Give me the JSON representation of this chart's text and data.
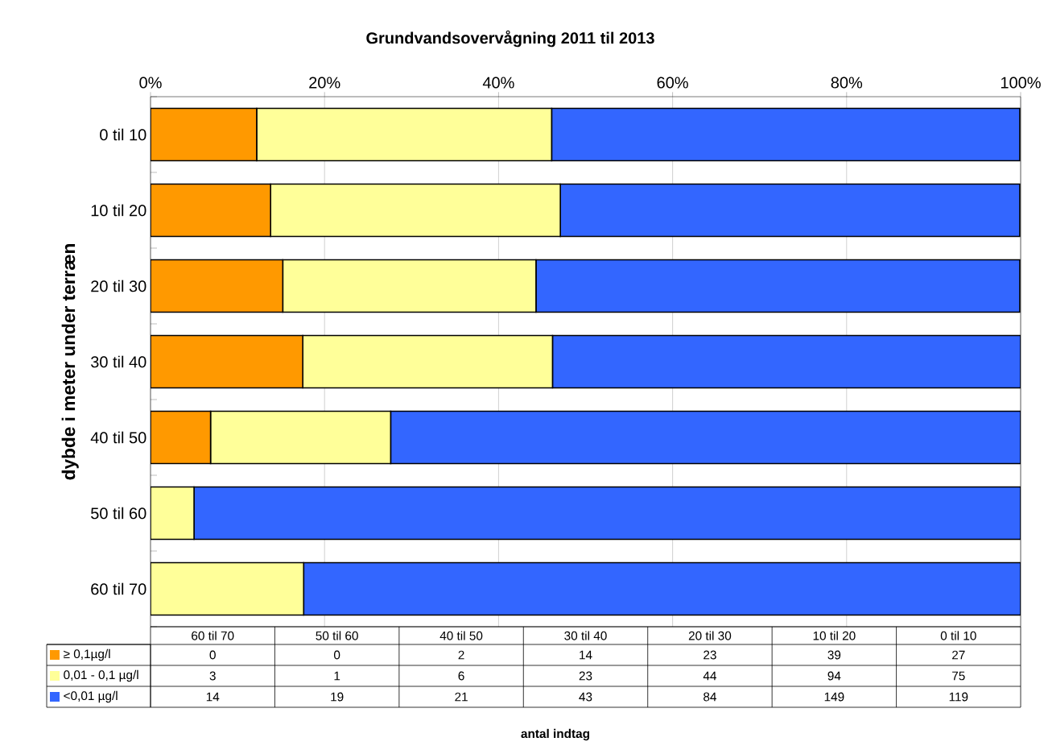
{
  "chart_data": {
    "type": "bar",
    "orientation": "horizontal",
    "stacked": true,
    "title": "Grundvandsovervågning 2011 til 2013",
    "ylabel": "dybde i meter under terræn",
    "categories": [
      "0 til 10",
      "10 til 20",
      "20 til 30",
      "30 til 40",
      "40 til 50",
      "50 til 60",
      "60 til 70"
    ],
    "series": [
      {
        "name": "≥ 0,1µg/l",
        "color": "#ff9900",
        "values": [
          12.2,
          13.8,
          15.2,
          17.5,
          6.9,
          0,
          0
        ]
      },
      {
        "name": "0,01 - 0,1 µg/l",
        "color": "#ffff99",
        "values": [
          33.9,
          33.3,
          29.1,
          28.7,
          20.7,
          5,
          17.6
        ]
      },
      {
        "name": "<0,01 µg/l",
        "color": "#3366ff",
        "values": [
          53.8,
          52.8,
          55.6,
          53.8,
          72.4,
          95,
          82.4
        ]
      }
    ],
    "annotations": [
      "0",
      "0",
      "2",
      "14",
      "23",
      "39",
      "27",
      "3",
      "1",
      "6",
      "23",
      "44",
      "94",
      "75",
      "14",
      "19",
      "21",
      "43",
      "84",
      "149",
      "119",
      "antal indtag"
    ],
    "xlim": [
      0,
      100
    ],
    "xticks": [
      {
        "value": 0,
        "label": "0%"
      },
      {
        "value": 20,
        "label": "20%"
      },
      {
        "value": 40,
        "label": "40%"
      },
      {
        "value": 60,
        "label": "60%"
      },
      {
        "value": 80,
        "label": "80%"
      },
      {
        "value": 100,
        "label": "100%"
      }
    ],
    "grid": "x",
    "legend": "bottom"
  }
}
